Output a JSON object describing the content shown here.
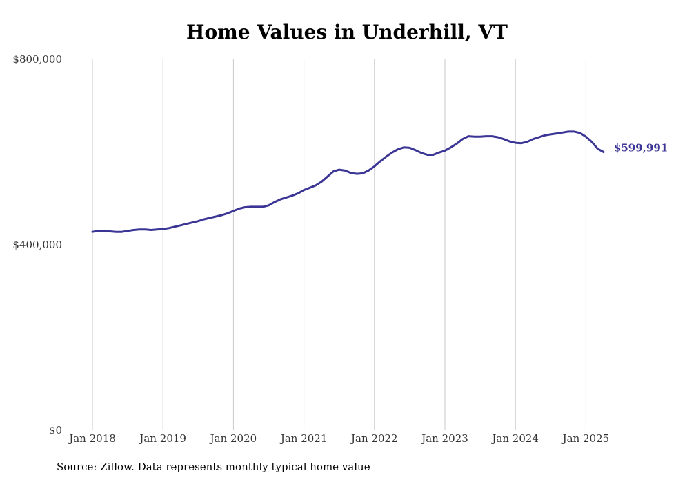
{
  "chart_data": {
    "type": "line",
    "title": "Home Values in Underhill, VT",
    "xlabel": "",
    "ylabel": "",
    "ylim": [
      0,
      800000
    ],
    "y_ticks": [
      {
        "value": 0,
        "label": "$0"
      },
      {
        "value": 400000,
        "label": "$400,000"
      },
      {
        "value": 800000,
        "label": "$800,000"
      }
    ],
    "x_ticks": [
      {
        "value": "2018-01",
        "label": "Jan 2018"
      },
      {
        "value": "2019-01",
        "label": "Jan 2019"
      },
      {
        "value": "2020-01",
        "label": "Jan 2020"
      },
      {
        "value": "2021-01",
        "label": "Jan 2021"
      },
      {
        "value": "2022-01",
        "label": "Jan 2022"
      },
      {
        "value": "2023-01",
        "label": "Jan 2023"
      },
      {
        "value": "2024-01",
        "label": "Jan 2024"
      },
      {
        "value": "2025-01",
        "label": "Jan 2025"
      }
    ],
    "grid": {
      "vertical": true,
      "horizontal": false
    },
    "line_color": "#3b3596",
    "end_label": "$599,991",
    "series": [
      {
        "x": [
          "2018-01",
          "2018-02",
          "2018-03",
          "2018-04",
          "2018-05",
          "2018-06",
          "2018-07",
          "2018-08",
          "2018-09",
          "2018-10",
          "2018-11",
          "2018-12",
          "2019-01",
          "2019-02",
          "2019-03",
          "2019-04",
          "2019-05",
          "2019-06",
          "2019-07",
          "2019-08",
          "2019-09",
          "2019-10",
          "2019-11",
          "2019-12",
          "2020-01",
          "2020-02",
          "2020-03",
          "2020-04",
          "2020-05",
          "2020-06",
          "2020-07",
          "2020-08",
          "2020-09",
          "2020-10",
          "2020-11",
          "2020-12",
          "2021-01",
          "2021-02",
          "2021-03",
          "2021-04",
          "2021-05",
          "2021-06",
          "2021-07",
          "2021-08",
          "2021-09",
          "2021-10",
          "2021-11",
          "2021-12",
          "2022-01",
          "2022-02",
          "2022-03",
          "2022-04",
          "2022-05",
          "2022-06",
          "2022-07",
          "2022-08",
          "2022-09",
          "2022-10",
          "2022-11",
          "2022-12",
          "2023-01",
          "2023-02",
          "2023-03",
          "2023-04",
          "2023-05",
          "2023-06",
          "2023-07",
          "2023-08",
          "2023-09",
          "2023-10",
          "2023-11",
          "2023-12",
          "2024-01",
          "2024-02",
          "2024-03",
          "2024-04",
          "2024-05",
          "2024-06",
          "2024-07",
          "2024-08",
          "2024-09",
          "2024-10",
          "2024-11",
          "2024-12",
          "2025-01",
          "2025-02",
          "2025-03",
          "2025-04"
        ],
        "values": [
          428000,
          430000,
          430000,
          429000,
          428000,
          428000,
          430000,
          432000,
          433000,
          433000,
          432000,
          433000,
          434000,
          436000,
          439000,
          442000,
          445000,
          448000,
          451000,
          455000,
          458000,
          461000,
          464000,
          468000,
          473000,
          478000,
          481000,
          482000,
          482000,
          482000,
          485000,
          492000,
          498000,
          502000,
          506000,
          511000,
          518000,
          523000,
          528000,
          536000,
          547000,
          558000,
          562000,
          560000,
          555000,
          553000,
          554000,
          560000,
          569000,
          580000,
          590000,
          599000,
          606000,
          610000,
          609000,
          604000,
          598000,
          594000,
          594000,
          599000,
          603000,
          610000,
          618000,
          628000,
          634000,
          633000,
          633000,
          634000,
          634000,
          632000,
          628000,
          623000,
          620000,
          619000,
          622000,
          628000,
          632000,
          636000,
          638000,
          640000,
          642000,
          644000,
          644000,
          641000,
          633000,
          622000,
          607000,
          599991
        ]
      }
    ]
  },
  "source_text": "Source: Zillow. Data represents monthly typical home value"
}
